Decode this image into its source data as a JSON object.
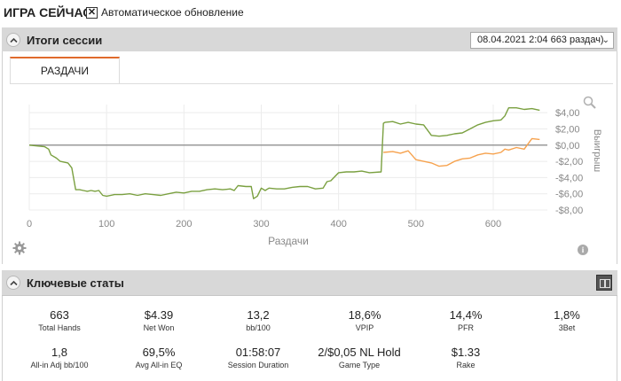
{
  "header": {
    "title": "ИГРА СЕЙЧАС",
    "auto_update_checked": true,
    "auto_update_mark": "✕",
    "auto_update_label": "Автоматическое обновление"
  },
  "session": {
    "title": "Итоги сессии",
    "selected": "08.04.2021 2:04 663 раздач)",
    "chevron": "⌄",
    "tab_label": "РАЗДАЧИ"
  },
  "chart_data": {
    "type": "line",
    "xlabel": "Раздачи",
    "ylabel": "Выигрыш",
    "xlim": [
      0,
      670
    ],
    "ylim": [
      -8,
      5
    ],
    "x_ticks": [
      0,
      100,
      200,
      300,
      400,
      500,
      600
    ],
    "y_ticks": [
      4,
      2,
      0,
      -2,
      -4,
      -6,
      -8
    ],
    "y_tick_labels": [
      "$4,00",
      "$2,00",
      "$0,00",
      "-$2,00",
      "-$4,00",
      "-$6,00",
      "-$8,00"
    ],
    "grid": true,
    "colors": {
      "green": "#7aa040",
      "orange": "#f6a24e",
      "zero": "#999999"
    },
    "series": [
      {
        "color": "green",
        "x": [
          0,
          20,
          25,
          28,
          35,
          40,
          50,
          55,
          60,
          65,
          70,
          75,
          80,
          85,
          90,
          95,
          100,
          110,
          120,
          130,
          140,
          150,
          160,
          170,
          180,
          190,
          200,
          210,
          220,
          230,
          240,
          250,
          260,
          265,
          270,
          280,
          287,
          290,
          295,
          300,
          305,
          310,
          320,
          330,
          340,
          350,
          360,
          370,
          380,
          385,
          390,
          400,
          410,
          420,
          430,
          440,
          455,
          458,
          460,
          470,
          480,
          490,
          500,
          510,
          520,
          530,
          540,
          550,
          560,
          570,
          580,
          590,
          600,
          610,
          615,
          620,
          630,
          640,
          650,
          660
        ],
        "y": [
          0,
          -0.2,
          -0.5,
          -1.2,
          -1.6,
          -2.0,
          -2.2,
          -2.8,
          -5.5,
          -5.5,
          -5.6,
          -5.7,
          -5.6,
          -5.7,
          -5.6,
          -6.2,
          -6.3,
          -6.1,
          -6.1,
          -6.0,
          -6.2,
          -6.0,
          -6.1,
          -6.2,
          -6.0,
          -5.8,
          -5.9,
          -5.7,
          -5.7,
          -5.5,
          -5.4,
          -5.5,
          -5.4,
          -5.6,
          -5.0,
          -5.1,
          -5.1,
          -6.6,
          -6.3,
          -5.3,
          -5.6,
          -5.3,
          -5.4,
          -5.4,
          -5.2,
          -5.1,
          -5.1,
          -5.4,
          -5.3,
          -4.5,
          -4.4,
          -3.4,
          -3.3,
          -3.3,
          -3.2,
          -3.4,
          -3.3,
          2.7,
          2.8,
          2.9,
          2.6,
          2.8,
          2.6,
          2.5,
          1.2,
          1.1,
          1.2,
          1.4,
          1.5,
          2.0,
          2.5,
          2.8,
          3.0,
          3.1,
          3.6,
          4.6,
          4.6,
          4.4,
          4.5,
          4.3
        ]
      },
      {
        "color": "orange",
        "x": [
          458,
          470,
          480,
          490,
          500,
          510,
          520,
          530,
          540,
          550,
          560,
          570,
          580,
          590,
          600,
          610,
          615,
          620,
          630,
          640,
          650,
          660
        ],
        "y": [
          -0.9,
          -0.8,
          -1.0,
          -0.7,
          -1.8,
          -2.0,
          -2.2,
          -2.6,
          -2.5,
          -2.0,
          -1.7,
          -1.6,
          -1.2,
          -1.0,
          -1.1,
          -0.9,
          -0.5,
          -0.6,
          -0.3,
          -0.5,
          0.8,
          0.7
        ]
      }
    ]
  },
  "stats_section": {
    "title": "Ключевые статы",
    "items": [
      {
        "value": "663",
        "label": "Total Hands"
      },
      {
        "value": "$4.39",
        "label": "Net Won"
      },
      {
        "value": "13,2",
        "label": "bb/100"
      },
      {
        "value": "18,6%",
        "label": "VPIP"
      },
      {
        "value": "14,4%",
        "label": "PFR"
      },
      {
        "value": "1,8%",
        "label": "3Bet"
      },
      {
        "value": "1,8",
        "label": "All-in Adj bb/100"
      },
      {
        "value": "69,5%",
        "label": "Avg All-in EQ"
      },
      {
        "value": "01:58:07",
        "label": "Session Duration"
      },
      {
        "value": "2/$0,05 NL Hold",
        "label": "Game Type"
      },
      {
        "value": "$1.33",
        "label": "Rake"
      }
    ]
  }
}
